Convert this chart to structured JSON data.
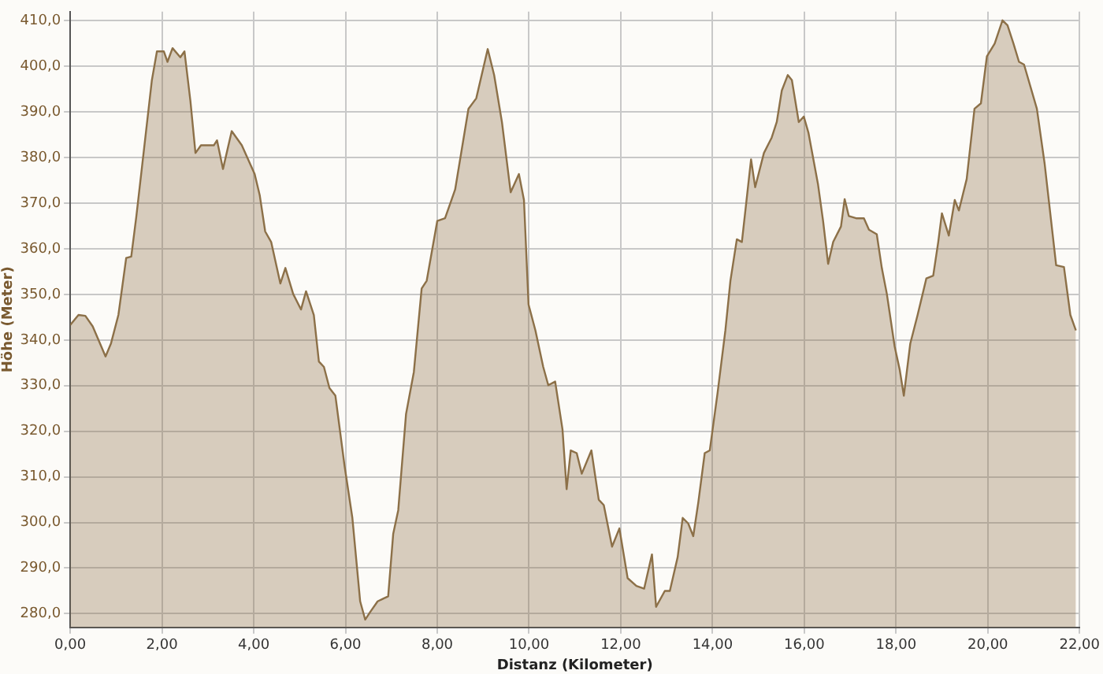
{
  "chart_data": {
    "type": "area",
    "xlabel": "Distanz (Kilometer)",
    "ylabel": "Höhe (Meter)",
    "x": [
      0,
      0.18,
      0.33,
      0.49,
      0.6,
      0.77,
      0.89,
      1.05,
      1.22,
      1.33,
      1.44,
      1.61,
      1.78,
      1.89,
      2.04,
      2.12,
      2.23,
      2.4,
      2.49,
      2.62,
      2.73,
      2.85,
      3.13,
      3.2,
      3.33,
      3.52,
      3.74,
      4.02,
      4.13,
      4.25,
      4.38,
      4.58,
      4.69,
      4.86,
      5.03,
      5.14,
      5.31,
      5.42,
      5.53,
      5.65,
      5.78,
      5.98,
      6.15,
      6.32,
      6.43,
      6.54,
      6.7,
      6.82,
      6.93,
      7.04,
      7.15,
      7.32,
      7.49,
      7.66,
      7.77,
      8.0,
      8.17,
      8.39,
      8.68,
      8.85,
      9.1,
      9.24,
      9.41,
      9.6,
      9.78,
      9.89,
      9.99,
      10.14,
      10.31,
      10.42,
      10.57,
      10.73,
      10.82,
      10.91,
      11.04,
      11.15,
      11.36,
      11.52,
      11.63,
      11.81,
      11.97,
      12.15,
      12.34,
      12.51,
      12.68,
      12.77,
      12.96,
      13.07,
      13.24,
      13.35,
      13.47,
      13.58,
      13.69,
      13.83,
      13.94,
      14.11,
      14.28,
      14.39,
      14.53,
      14.64,
      14.84,
      14.93,
      15.12,
      15.29,
      15.4,
      15.51,
      15.64,
      15.73,
      15.88,
      15.99,
      16.09,
      16.3,
      16.41,
      16.52,
      16.63,
      16.8,
      16.88,
      16.97,
      17.13,
      17.3,
      17.41,
      17.58,
      17.69,
      17.8,
      17.97,
      18.08,
      18.17,
      18.31,
      18.47,
      18.58,
      18.66,
      18.81,
      18.92,
      19.0,
      19.15,
      19.28,
      19.37,
      19.54,
      19.71,
      19.85,
      19.98,
      20.15,
      20.32,
      20.43,
      20.56,
      20.68,
      20.79,
      21.07,
      21.24,
      21.49,
      21.66,
      21.8,
      21.92
    ],
    "series": [
      {
        "color": "#8c7048",
        "values": [
          343.3,
          345.5,
          345.3,
          343,
          340.4,
          336.4,
          339.3,
          345.5,
          358,
          358.3,
          367,
          382,
          397,
          403.3,
          403.3,
          401,
          404,
          402,
          403.3,
          392.4,
          381,
          382.7,
          382.7,
          383.8,
          377.5,
          385.8,
          382.7,
          376.4,
          371.8,
          363.8,
          361.5,
          352.4,
          355.8,
          350.1,
          346.7,
          350.7,
          345.5,
          335.3,
          334.1,
          329.5,
          327.8,
          312.4,
          301,
          282.7,
          278.7,
          280.4,
          282.7,
          283.3,
          283.8,
          297.5,
          302.7,
          323.8,
          333,
          351.3,
          353,
          366.1,
          366.7,
          373,
          390.7,
          393,
          403.8,
          398.1,
          387.8,
          372.4,
          376.4,
          370.7,
          347.8,
          342.1,
          334.1,
          330.1,
          330.9,
          320.4,
          307.3,
          315.8,
          315.2,
          310.7,
          315.8,
          305,
          303.8,
          294.7,
          298.7,
          287.8,
          286.1,
          285.5,
          293,
          281.5,
          285,
          285,
          292.4,
          301,
          299.8,
          297,
          304.4,
          315.2,
          315.8,
          328.4,
          342.1,
          353,
          362.1,
          361.5,
          379.6,
          373.5,
          381,
          384.4,
          387.8,
          394.7,
          398.1,
          397,
          387.8,
          389,
          385.5,
          374.1,
          366.1,
          356.7,
          361.5,
          364.9,
          370.9,
          367.2,
          366.7,
          366.7,
          364.2,
          363.2,
          355.8,
          350.1,
          338.6,
          333.5,
          327.8,
          339.2,
          345.5,
          350.1,
          353.5,
          354.1,
          361.5,
          367.8,
          362.9,
          370.7,
          368.4,
          375.3,
          390.7,
          391.9,
          402.2,
          405,
          410.1,
          409,
          405,
          401,
          400.4,
          390.7,
          378.6,
          356.4,
          356,
          345.5,
          342.1
        ]
      }
    ],
    "xlim": [
      0,
      22
    ],
    "xticks": [
      {
        "value": 0,
        "label": "0,00"
      },
      {
        "value": 2,
        "label": "2,00"
      },
      {
        "value": 4,
        "label": "4,00"
      },
      {
        "value": 6,
        "label": "6,00"
      },
      {
        "value": 8,
        "label": "8,00"
      },
      {
        "value": 10,
        "label": "10,00"
      },
      {
        "value": 12,
        "label": "12,00"
      },
      {
        "value": 14,
        "label": "14,00"
      },
      {
        "value": 16,
        "label": "16,00"
      },
      {
        "value": 18,
        "label": "18,00"
      },
      {
        "value": 20,
        "label": "20,00"
      },
      {
        "value": 22,
        "label": "22,00"
      }
    ],
    "ylim": [
      277,
      412
    ],
    "yticks": [
      {
        "value": 280,
        "label": "280,0"
      },
      {
        "value": 290,
        "label": "290,0"
      },
      {
        "value": 300,
        "label": "300,0"
      },
      {
        "value": 310,
        "label": "310,0"
      },
      {
        "value": 320,
        "label": "320,0"
      },
      {
        "value": 330,
        "label": "330,0"
      },
      {
        "value": 340,
        "label": "340,0"
      },
      {
        "value": 350,
        "label": "350,0"
      },
      {
        "value": 360,
        "label": "360,0"
      },
      {
        "value": 370,
        "label": "370,0"
      },
      {
        "value": 380,
        "label": "380,0"
      },
      {
        "value": 390,
        "label": "390,0"
      },
      {
        "value": 400,
        "label": "400,0"
      },
      {
        "value": 410,
        "label": "410,0"
      }
    ],
    "grid": true,
    "line_style": "solid",
    "marker": "none",
    "legend": false
  }
}
